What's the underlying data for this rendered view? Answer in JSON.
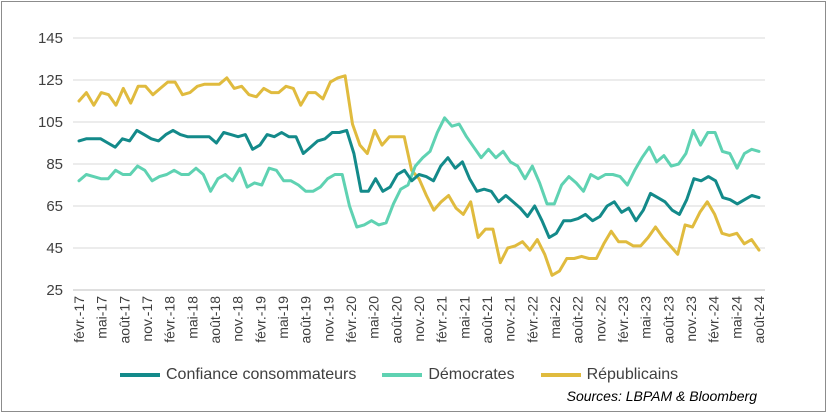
{
  "chart_data": {
    "type": "line",
    "title": "",
    "xlabel": "",
    "ylabel": "",
    "ylim": [
      25,
      145
    ],
    "yticks": [
      25,
      45,
      65,
      85,
      105,
      125,
      145
    ],
    "grid": "horizontal",
    "legend_position": "bottom",
    "source": "Sources: LBPAM & Bloomberg",
    "x_tick_labels": [
      "févr.-17",
      "mai-17",
      "août-17",
      "nov.-17",
      "févr.-18",
      "mai-18",
      "août-18",
      "nov.-18",
      "févr.-19",
      "mai-19",
      "août-19",
      "nov.-19",
      "févr.-20",
      "mai-20",
      "août-20",
      "nov.-20",
      "févr.-21",
      "mai-21",
      "août-21",
      "nov.-21",
      "févr.-22",
      "mai-22",
      "août-22",
      "nov.-22",
      "févr.-23",
      "mai-23",
      "août-23",
      "nov.-23",
      "févr.-24",
      "mai-24",
      "août-24"
    ],
    "series": [
      {
        "name": "Confiance consommateurs",
        "color": "#138a8a",
        "values": [
          96,
          97,
          97,
          97,
          95,
          93,
          97,
          96,
          101,
          99,
          97,
          96,
          99,
          101,
          99,
          98,
          98,
          98,
          98,
          95,
          100,
          99,
          98,
          99,
          92,
          94,
          99,
          98,
          100,
          98,
          98,
          90,
          93,
          96,
          97,
          100,
          100,
          101,
          90,
          72,
          72,
          78,
          72,
          74,
          80,
          82,
          77,
          80,
          79,
          77,
          84,
          88,
          83,
          86,
          78,
          72,
          73,
          72,
          67,
          70,
          67,
          64,
          60,
          65,
          58,
          50,
          52,
          58,
          58,
          59,
          61,
          58,
          60,
          65,
          67,
          62,
          64,
          58,
          63,
          71,
          69,
          67,
          63,
          61,
          68,
          78,
          77,
          79,
          77,
          69,
          68,
          66,
          68,
          70,
          69
        ]
      },
      {
        "name": "Démocrates",
        "color": "#5fd2b2",
        "values": [
          77,
          80,
          79,
          78,
          78,
          82,
          80,
          80,
          84,
          82,
          77,
          79,
          80,
          82,
          80,
          80,
          83,
          80,
          72,
          78,
          80,
          77,
          83,
          74,
          76,
          75,
          83,
          82,
          77,
          77,
          75,
          72,
          72,
          74,
          78,
          80,
          80,
          65,
          55,
          56,
          58,
          56,
          57,
          66,
          73,
          75,
          84,
          88,
          91,
          100,
          107,
          103,
          104,
          98,
          93,
          88,
          92,
          88,
          91,
          86,
          84,
          78,
          84,
          76,
          66,
          66,
          75,
          79,
          76,
          72,
          80,
          78,
          80,
          80,
          79,
          75,
          82,
          88,
          93,
          86,
          89,
          84,
          85,
          90,
          101,
          94,
          100,
          100,
          91,
          90,
          83,
          90,
          92,
          91
        ]
      },
      {
        "name": "Républicains",
        "color": "#e0bb3e",
        "values": [
          115,
          119,
          113,
          119,
          118,
          113,
          121,
          114,
          122,
          122,
          118,
          121,
          124,
          124,
          118,
          119,
          122,
          123,
          123,
          123,
          126,
          121,
          122,
          118,
          117,
          121,
          119,
          119,
          122,
          121,
          113,
          119,
          119,
          116,
          124,
          126,
          127,
          104,
          94,
          90,
          101,
          94,
          98,
          98,
          98,
          82,
          78,
          70,
          63,
          67,
          70,
          64,
          61,
          67,
          50,
          54,
          54,
          38,
          45,
          46,
          48,
          44,
          49,
          42,
          32,
          34,
          40,
          40,
          41,
          40,
          40,
          47,
          53,
          48,
          48,
          46,
          46,
          50,
          55,
          50,
          46,
          42,
          56,
          55,
          62,
          67,
          61,
          52,
          51,
          52,
          47,
          49,
          44
        ]
      }
    ]
  }
}
